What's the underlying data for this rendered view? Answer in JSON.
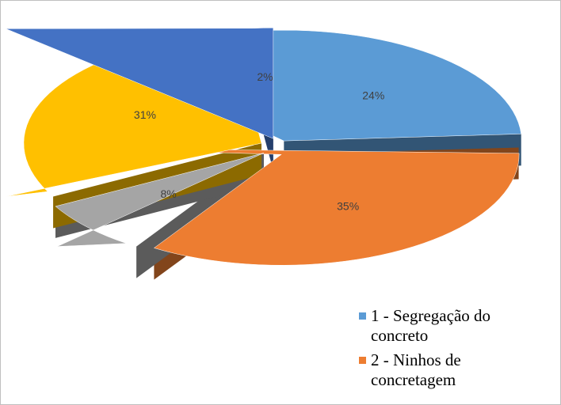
{
  "chart_data": {
    "type": "pie",
    "categories": [
      "1 - Segregação do concreto",
      "2 - Ninhos de concretagem",
      null,
      null,
      null
    ],
    "values": [
      24,
      35,
      8,
      31,
      2
    ],
    "value_labels": [
      "24%",
      "35%",
      "8%",
      "31%",
      "2%"
    ],
    "colors": [
      "#5b9bd5",
      "#ed7d31",
      "#a5a5a5",
      "#ffc000",
      "#4472c4"
    ],
    "legend": "bottom-right"
  }
}
